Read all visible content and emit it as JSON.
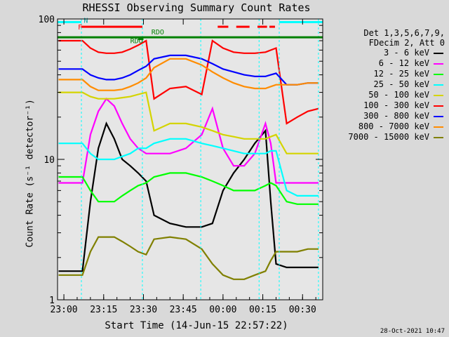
{
  "title": "RHESSI Observing Summary Count Rates",
  "xtitle": "Start Time (14-Jun-15 22:57:22)",
  "ylabel": "Count Rate (s⁻¹ detector⁻¹)",
  "footer": "28-Oct-2021 10:47",
  "legend": {
    "header": [
      "Det 1,3,5,6,7,9,",
      "FDecim 2, Att 0"
    ],
    "items": [
      {
        "label": "3 - 6 keV",
        "color": "#000000"
      },
      {
        "label": "6 - 12 keV",
        "color": "#ff00ff"
      },
      {
        "label": "12 - 25 keV",
        "color": "#00ff00"
      },
      {
        "label": "25 - 50 keV",
        "color": "#00ffff"
      },
      {
        "label": "50 - 100 keV",
        "color": "#d4d400"
      },
      {
        "label": "100 - 300 keV",
        "color": "#ff0000"
      },
      {
        "label": "300 - 800 keV",
        "color": "#0000ff"
      },
      {
        "label": "800 - 7000 keV",
        "color": "#ff8c00"
      },
      {
        "label": "7000 - 15000 keV",
        "color": "#808000"
      }
    ]
  },
  "flag_labels": {
    "night": "N",
    "fast_rate": "F",
    "saa": "RDO",
    "rdo_small": "RDO"
  },
  "chart_data": {
    "type": "line",
    "title": "RHESSI Observing Summary Count Rates",
    "xlabel": "Start Time (14-Jun-15 22:57:22)",
    "ylabel": "Count Rate (s⁻¹ detector⁻¹)",
    "ylog": true,
    "ylim": [
      1,
      100
    ],
    "xlim_min": [
      -2.4,
      97.6
    ],
    "x_tick_labels": [
      "23:00",
      "23:15",
      "23:30",
      "23:45",
      "00:00",
      "00:15",
      "00:30"
    ],
    "x_tick_values_min": [
      0,
      15,
      30,
      45,
      60,
      75,
      90
    ],
    "y_tick_labels": [
      "1",
      "10",
      "100"
    ],
    "series": [
      {
        "name": "3 - 6 keV",
        "color": "#000000",
        "x": [
          -2,
          4,
          7,
          10,
          13,
          16,
          19,
          22,
          25,
          28,
          31,
          34,
          40,
          46,
          52,
          56,
          60,
          64,
          68,
          72,
          76,
          78,
          80,
          84,
          88,
          92,
          96
        ],
        "y": [
          1.6,
          1.6,
          1.6,
          5,
          12,
          18,
          14,
          10,
          9,
          8,
          7,
          4,
          3.5,
          3.3,
          3.3,
          3.5,
          6,
          8,
          10,
          13,
          16,
          5,
          1.8,
          1.7,
          1.7,
          1.7,
          1.7
        ]
      },
      {
        "name": "6 - 12 keV",
        "color": "#ff00ff",
        "x": [
          -2,
          4,
          7,
          10,
          13,
          16,
          19,
          22,
          25,
          28,
          31,
          40,
          46,
          52,
          56,
          60,
          64,
          68,
          72,
          76,
          78,
          80,
          84,
          88,
          92,
          96
        ],
        "y": [
          6.8,
          6.8,
          6.8,
          15,
          22,
          27,
          24,
          18,
          14,
          12,
          11,
          11,
          12,
          15,
          23,
          12,
          9,
          9,
          11,
          18,
          13,
          6.8,
          6.8,
          6.8,
          6.8,
          6.8
        ]
      },
      {
        "name": "12 - 25 keV",
        "color": "#00ff00",
        "x": [
          -2,
          4,
          7,
          10,
          13,
          16,
          19,
          22,
          25,
          28,
          31,
          34,
          40,
          46,
          52,
          56,
          60,
          64,
          68,
          72,
          76,
          78,
          80,
          84,
          88,
          92,
          96
        ],
        "y": [
          7.5,
          7.5,
          7.5,
          6,
          5,
          5,
          5,
          5.5,
          6,
          6.5,
          6.8,
          7.5,
          8,
          8,
          7.5,
          7,
          6.5,
          6,
          6,
          6,
          6.5,
          6.8,
          6.5,
          5,
          4.8,
          4.8,
          4.8
        ]
      },
      {
        "name": "25 - 50 keV",
        "color": "#00ffff",
        "x": [
          -2,
          4,
          7,
          10,
          13,
          16,
          19,
          22,
          25,
          28,
          31,
          34,
          40,
          46,
          52,
          56,
          60,
          64,
          68,
          72,
          76,
          78,
          80,
          84,
          88,
          92,
          96
        ],
        "y": [
          13,
          13,
          13,
          11,
          10,
          10,
          10,
          10.5,
          11,
          12,
          12,
          13,
          14,
          14,
          13,
          12.5,
          12,
          11.5,
          11,
          11,
          11,
          11.5,
          11.5,
          6,
          5.5,
          5.5,
          5.5
        ]
      },
      {
        "name": "50 - 100 keV",
        "color": "#d4d400",
        "x": [
          -2,
          4,
          7,
          10,
          13,
          16,
          19,
          22,
          25,
          28,
          31,
          34,
          40,
          46,
          52,
          56,
          60,
          64,
          68,
          72,
          76,
          78,
          80,
          84,
          88,
          92,
          96
        ],
        "y": [
          30,
          30,
          30,
          28,
          27,
          27,
          27,
          27.5,
          28,
          29,
          30,
          16,
          18,
          18,
          17,
          16,
          15,
          14.5,
          14,
          14,
          14,
          14.5,
          15,
          11,
          11,
          11,
          11
        ]
      },
      {
        "name": "100 - 300 keV",
        "color": "#ff0000",
        "x": [
          -2,
          4,
          7,
          10,
          13,
          16,
          19,
          22,
          25,
          28,
          31,
          34,
          40,
          46,
          52,
          56,
          60,
          64,
          68,
          72,
          76,
          78,
          80,
          84,
          88,
          92,
          96
        ],
        "y": [
          70,
          70,
          70,
          62,
          58,
          57,
          57,
          58,
          61,
          65,
          70,
          27,
          32,
          33,
          29,
          70,
          62,
          58,
          57,
          57,
          58,
          60,
          62,
          18,
          20,
          22,
          23
        ]
      },
      {
        "name": "300 - 800 keV",
        "color": "#0000ff",
        "x": [
          -2,
          4,
          7,
          10,
          13,
          16,
          19,
          22,
          25,
          28,
          31,
          34,
          40,
          46,
          52,
          56,
          60,
          64,
          68,
          72,
          76,
          78,
          80,
          84,
          88,
          92,
          96
        ],
        "y": [
          44,
          44,
          44,
          40,
          38,
          37,
          37,
          38,
          40,
          43,
          46,
          52,
          55,
          55,
          52,
          48,
          44,
          42,
          40,
          39,
          39,
          40,
          41,
          34,
          34,
          35,
          35
        ]
      },
      {
        "name": "800 - 7000 keV",
        "color": "#ff8c00",
        "x": [
          -2,
          4,
          7,
          10,
          13,
          16,
          19,
          22,
          25,
          28,
          31,
          34,
          40,
          46,
          52,
          56,
          60,
          64,
          68,
          72,
          76,
          78,
          80,
          84,
          88,
          92,
          96
        ],
        "y": [
          37,
          37,
          37,
          33,
          31,
          31,
          31,
          31.5,
          33,
          35,
          38,
          45,
          52,
          52,
          47,
          42,
          38,
          35,
          33,
          32,
          32,
          33,
          34,
          34,
          34,
          35,
          35
        ]
      },
      {
        "name": "7000 - 15000 keV",
        "color": "#808000",
        "x": [
          -2,
          4,
          7,
          10,
          13,
          16,
          19,
          22,
          25,
          28,
          31,
          34,
          40,
          46,
          52,
          56,
          60,
          64,
          68,
          72,
          76,
          78,
          80,
          84,
          88,
          92,
          96
        ],
        "y": [
          1.5,
          1.5,
          1.5,
          2.2,
          2.8,
          2.8,
          2.8,
          2.6,
          2.4,
          2.2,
          2.1,
          2.7,
          2.8,
          2.7,
          2.3,
          1.8,
          1.5,
          1.4,
          1.4,
          1.5,
          1.6,
          1.9,
          2.2,
          2.2,
          2.2,
          2.3,
          2.3
        ]
      }
    ],
    "flags": [
      {
        "name": "N",
        "color": "#00ffff",
        "segments": [
          [
            -2.4,
            6.6
          ],
          [
            81.2,
            97.6
          ]
        ],
        "y": 95
      },
      {
        "name": "F",
        "color": "#ff0000",
        "segments": [
          [
            6.6,
            29.6
          ],
          [
            58,
            62
          ],
          [
            65,
            70
          ],
          [
            73,
            76.6
          ],
          [
            77.5,
            79.6
          ]
        ],
        "y": 88
      },
      {
        "name": "RDO",
        "color": "#008000",
        "segments": [
          [
            -2.4,
            97.6
          ]
        ],
        "y": 74
      },
      {
        "name": "RDO",
        "color": "#008000",
        "segments": [
          [
            28,
            30
          ]
        ],
        "y": 72
      }
    ],
    "event_lines_min": [
      6.6,
      29.6,
      51.6,
      73.6,
      81.2,
      96.0
    ]
  }
}
